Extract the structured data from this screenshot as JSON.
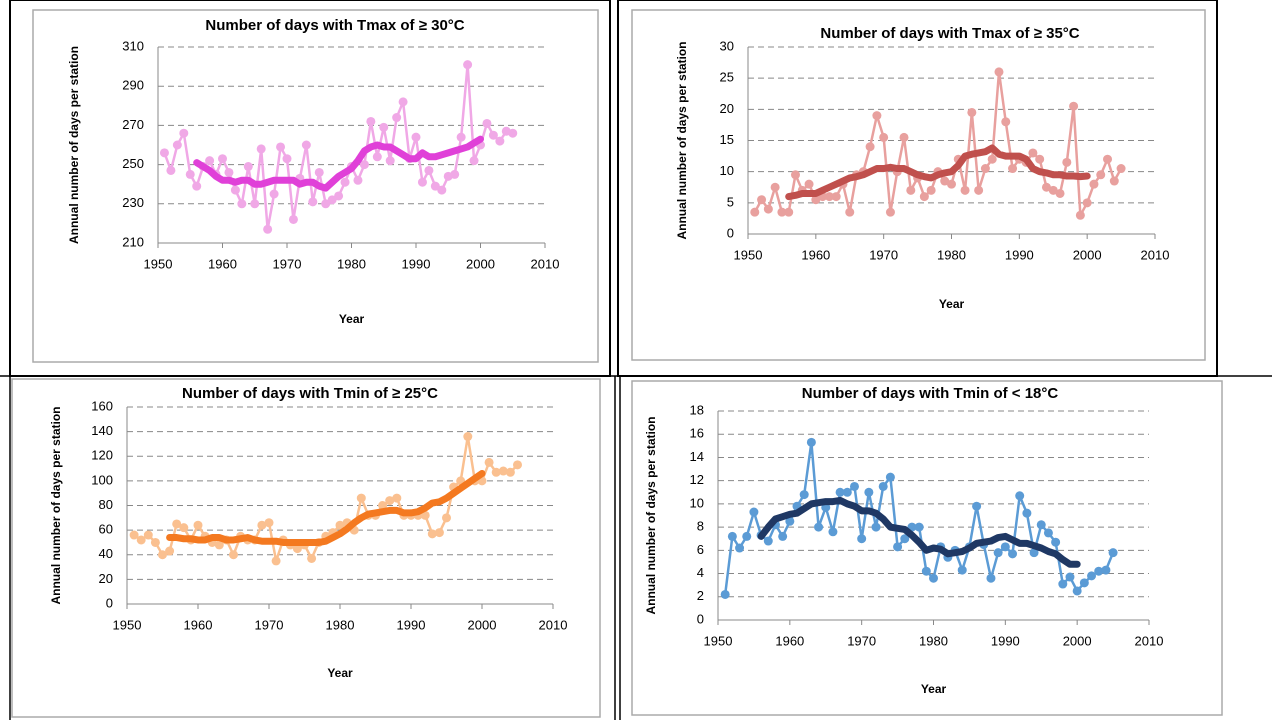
{
  "chart_data": [
    {
      "type": "line",
      "title": "Number of days with Tmax of ≥ 30°C",
      "x_label": "Year",
      "y_label": "Annual number of days per station",
      "x": [
        1951,
        1952,
        1953,
        1954,
        1955,
        1956,
        1957,
        1958,
        1959,
        1960,
        1961,
        1962,
        1963,
        1964,
        1965,
        1966,
        1967,
        1968,
        1969,
        1970,
        1971,
        1972,
        1973,
        1974,
        1975,
        1976,
        1977,
        1978,
        1979,
        1980,
        1981,
        1982,
        1983,
        1984,
        1985,
        1986,
        1987,
        1988,
        1989,
        1990,
        1991,
        1992,
        1993,
        1994,
        1995,
        1996,
        1997,
        1998,
        1999,
        2000,
        2001,
        2002,
        2003,
        2004,
        2005
      ],
      "series": [
        {
          "color": "#f0a8e6",
          "markers": true,
          "values": [
            256,
            247,
            260,
            266,
            245,
            239,
            249,
            252,
            245,
            253,
            246,
            237,
            230,
            249,
            230,
            258,
            217,
            235,
            259,
            253,
            222,
            243,
            260,
            231,
            246,
            230,
            232,
            234,
            241,
            249,
            242,
            250,
            272,
            254,
            269,
            252,
            274,
            282,
            253,
            264,
            241,
            247,
            239,
            237,
            244,
            245,
            264,
            301,
            252,
            260,
            271,
            265,
            262,
            267,
            266
          ]
        },
        {
          "color": "#e040d8",
          "markers": false,
          "values": [
            null,
            null,
            null,
            null,
            null,
            251,
            249,
            247,
            244,
            242,
            242,
            241,
            242,
            242,
            240,
            240,
            241,
            242,
            242,
            242,
            242,
            240,
            241,
            241,
            239,
            238,
            241,
            244,
            246,
            248,
            252,
            257,
            259,
            260,
            259,
            259,
            257,
            255,
            253,
            253,
            256,
            254,
            254,
            255,
            256,
            257,
            258,
            259,
            261,
            263,
            null,
            null,
            null,
            null,
            null
          ]
        }
      ],
      "xlim": [
        1950,
        2010
      ],
      "xticks": [
        1950,
        1960,
        1970,
        1980,
        1990,
        2000,
        2010
      ],
      "ylim": [
        210,
        310
      ],
      "yticks": [
        210,
        230,
        250,
        270,
        290,
        310
      ],
      "grid": true
    },
    {
      "type": "line",
      "title": "Number of days with Tmax of ≥ 35°C",
      "x_label": "Year",
      "y_label": "Annual number of days per station",
      "x": [
        1951,
        1952,
        1953,
        1954,
        1955,
        1956,
        1957,
        1958,
        1959,
        1960,
        1961,
        1962,
        1963,
        1964,
        1965,
        1966,
        1967,
        1968,
        1969,
        1970,
        1971,
        1972,
        1973,
        1974,
        1975,
        1976,
        1977,
        1978,
        1979,
        1980,
        1981,
        1982,
        1983,
        1984,
        1985,
        1986,
        1987,
        1988,
        1989,
        1990,
        1991,
        1992,
        1993,
        1994,
        1995,
        1996,
        1997,
        1998,
        1999,
        2000,
        2001,
        2002,
        2003,
        2004,
        2005
      ],
      "series": [
        {
          "color": "#e8a09e",
          "markers": true,
          "values": [
            3.5,
            5.5,
            4,
            7.5,
            3.5,
            3.5,
            9.5,
            7,
            8,
            5.5,
            6,
            6,
            6,
            8,
            3.5,
            9.5,
            10,
            14,
            19,
            15.5,
            3.5,
            10,
            15.5,
            7,
            9,
            6,
            7,
            10,
            8.5,
            8,
            12,
            7,
            19.5,
            7,
            10.5,
            12,
            26,
            18,
            10.5,
            12,
            11.5,
            13,
            12,
            7.5,
            7,
            6.5,
            11.5,
            20.5,
            3,
            5,
            8,
            9.5,
            12,
            8.5,
            10.5
          ]
        },
        {
          "color": "#c0504d",
          "markers": false,
          "values": [
            null,
            null,
            null,
            null,
            null,
            6,
            6.2,
            6.5,
            6.5,
            6.5,
            7,
            7.5,
            8,
            8.5,
            9,
            9.2,
            9.5,
            10,
            10.5,
            10.5,
            10.7,
            10.5,
            10.5,
            10,
            9.5,
            9.2,
            9,
            9.5,
            9.8,
            10,
            11,
            12.5,
            12.8,
            13,
            13.2,
            13.8,
            12.8,
            12.5,
            12.5,
            12.5,
            12,
            10.5,
            10,
            9.8,
            9.5,
            9.5,
            9.3,
            9.3,
            9.2,
            9.3,
            null,
            null,
            null,
            null,
            null
          ]
        }
      ],
      "xlim": [
        1950,
        2010
      ],
      "xticks": [
        1950,
        1960,
        1970,
        1980,
        1990,
        2000,
        2010
      ],
      "ylim": [
        0,
        30
      ],
      "yticks": [
        0,
        5,
        10,
        15,
        20,
        25,
        30
      ],
      "grid": true
    },
    {
      "type": "line",
      "title": "Number of days with Tmin of ≥ 25°C",
      "x_label": "Year",
      "y_label": "Annual number of days per station",
      "x": [
        1951,
        1952,
        1953,
        1954,
        1955,
        1956,
        1957,
        1958,
        1959,
        1960,
        1961,
        1962,
        1963,
        1964,
        1965,
        1966,
        1967,
        1968,
        1969,
        1970,
        1971,
        1972,
        1973,
        1974,
        1975,
        1976,
        1977,
        1978,
        1979,
        1980,
        1981,
        1982,
        1983,
        1984,
        1985,
        1986,
        1987,
        1988,
        1989,
        1990,
        1991,
        1992,
        1993,
        1994,
        1995,
        1996,
        1997,
        1998,
        1999,
        2000,
        2001,
        2002,
        2003,
        2004,
        2005
      ],
      "series": [
        {
          "color": "#fac090",
          "markers": true,
          "values": [
            56,
            52,
            56,
            50,
            40,
            43,
            65,
            62,
            52,
            64,
            55,
            50,
            48,
            52,
            40,
            55,
            52,
            52,
            64,
            66,
            35,
            52,
            48,
            45,
            48,
            37,
            50,
            55,
            58,
            64,
            66,
            60,
            86,
            72,
            72,
            80,
            84,
            86,
            72,
            72,
            72,
            72,
            57,
            58,
            70,
            95,
            100,
            136,
            100,
            100,
            115,
            107,
            108,
            107,
            113
          ]
        },
        {
          "color": "#f47920",
          "markers": false,
          "values": [
            null,
            null,
            null,
            null,
            null,
            54,
            54,
            53,
            53,
            52,
            52,
            54,
            54,
            52,
            52,
            53,
            54,
            52,
            51,
            51,
            51,
            50,
            50,
            50,
            50,
            50,
            50,
            51,
            54,
            57,
            61,
            66,
            70,
            73,
            74,
            75,
            76,
            76,
            74,
            74,
            75,
            78,
            82,
            83,
            86,
            90,
            94,
            98,
            102,
            106,
            null,
            null,
            null,
            null,
            null
          ]
        }
      ],
      "xlim": [
        1950,
        2010
      ],
      "xticks": [
        1950,
        1960,
        1970,
        1980,
        1990,
        2000,
        2010
      ],
      "ylim": [
        0,
        160
      ],
      "yticks": [
        0,
        20,
        40,
        60,
        80,
        100,
        120,
        140,
        160
      ],
      "grid": true
    },
    {
      "type": "line",
      "title": "Number of days with Tmin of < 18°C",
      "x_label": "Year",
      "y_label": "Annual number of days per station",
      "x": [
        1951,
        1952,
        1953,
        1954,
        1955,
        1956,
        1957,
        1958,
        1959,
        1960,
        1961,
        1962,
        1963,
        1964,
        1965,
        1966,
        1967,
        1968,
        1969,
        1970,
        1971,
        1972,
        1973,
        1974,
        1975,
        1976,
        1977,
        1978,
        1979,
        1980,
        1981,
        1982,
        1983,
        1984,
        1985,
        1986,
        1987,
        1988,
        1989,
        1990,
        1991,
        1992,
        1993,
        1994,
        1995,
        1996,
        1997,
        1998,
        1999,
        2000,
        2001,
        2002,
        2003,
        2004,
        2005
      ],
      "series": [
        {
          "color": "#5b9bd5",
          "markers": true,
          "values": [
            2.2,
            7.2,
            6.2,
            7.2,
            9.3,
            7.3,
            6.8,
            8.2,
            7.2,
            8.5,
            9.8,
            10.8,
            15.3,
            8,
            9.7,
            7.6,
            11,
            11,
            11.5,
            7,
            11,
            8,
            11.5,
            12.3,
            6.3,
            7,
            8,
            8,
            4.2,
            3.6,
            6.3,
            5.4,
            6,
            4.3,
            6.3,
            9.8,
            6.5,
            3.6,
            5.8,
            6.3,
            5.7,
            10.7,
            9.2,
            5.8,
            8.2,
            7.5,
            6.7,
            3.1,
            3.7,
            2.5,
            3.2,
            3.8,
            4.2,
            4.3,
            5.8
          ]
        },
        {
          "color": "#1f3864",
          "markers": false,
          "values": [
            null,
            null,
            null,
            null,
            null,
            7.2,
            8,
            8.7,
            8.9,
            9.1,
            9.2,
            9.6,
            10,
            10.1,
            10.2,
            10.2,
            10.3,
            10,
            9.8,
            9.4,
            9.4,
            9.2,
            8.7,
            8,
            7.9,
            7.8,
            7.3,
            6.7,
            6,
            6.2,
            6.1,
            5.7,
            5.8,
            5.9,
            6.2,
            6.6,
            6.7,
            6.8,
            7.1,
            7.2,
            6.9,
            6.6,
            6.6,
            6.4,
            6.2,
            5.9,
            5.7,
            5.2,
            4.8,
            4.8,
            null,
            null,
            null,
            null,
            null
          ]
        }
      ],
      "xlim": [
        1950,
        2010
      ],
      "xticks": [
        1950,
        1960,
        1970,
        1980,
        1990,
        2000,
        2010
      ],
      "ylim": [
        0,
        18
      ],
      "yticks": [
        0,
        2,
        4,
        6,
        8,
        10,
        12,
        14,
        16,
        18
      ],
      "grid": true
    }
  ]
}
